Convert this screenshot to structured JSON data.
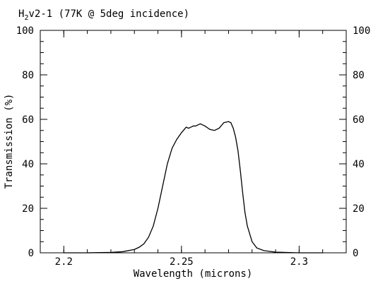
{
  "chart_data": {
    "type": "line",
    "title_main": "H",
    "title_sub": "2",
    "title_rest": "v2-1 (77K @ 5deg incidence)",
    "xlabel": "Wavelength (microns)",
    "ylabel": "Transmission (%)",
    "xlim": [
      2.19,
      2.32
    ],
    "ylim": [
      0,
      100
    ],
    "x_ticks": [
      {
        "value": 2.2,
        "label": "2.2"
      },
      {
        "value": 2.25,
        "label": "2.25"
      },
      {
        "value": 2.3,
        "label": "2.3"
      }
    ],
    "y_ticks": [
      {
        "value": 0,
        "label": "0"
      },
      {
        "value": 20,
        "label": "20"
      },
      {
        "value": 40,
        "label": "40"
      },
      {
        "value": 60,
        "label": "60"
      },
      {
        "value": 80,
        "label": "80"
      },
      {
        "value": 100,
        "label": "100"
      }
    ],
    "x_minor_step": 0.01,
    "y_minor_step": 5,
    "series": [
      {
        "color": "#000000",
        "x": [
          2.2,
          2.21,
          2.22,
          2.225,
          2.23,
          2.232,
          2.234,
          2.236,
          2.238,
          2.24,
          2.242,
          2.244,
          2.246,
          2.248,
          2.25,
          2.252,
          2.253,
          2.254,
          2.255,
          2.256,
          2.258,
          2.26,
          2.262,
          2.264,
          2.266,
          2.268,
          2.27,
          2.271,
          2.272,
          2.273,
          2.274,
          2.275,
          2.276,
          2.277,
          2.278,
          2.28,
          2.282,
          2.285,
          2.29,
          2.3,
          2.31
        ],
        "y": [
          0.0,
          0.0,
          0.2,
          0.5,
          1.5,
          2.5,
          4.0,
          7.0,
          12.0,
          20.0,
          30.0,
          40.0,
          47.0,
          51.0,
          54.0,
          56.5,
          56.0,
          56.5,
          57.0,
          57.0,
          58.0,
          57.0,
          55.5,
          55.0,
          56.0,
          58.5,
          59.0,
          58.5,
          56.0,
          52.0,
          46.0,
          37.0,
          27.0,
          18.0,
          12.0,
          5.0,
          2.2,
          1.0,
          0.3,
          0.0,
          0.0
        ]
      }
    ]
  }
}
